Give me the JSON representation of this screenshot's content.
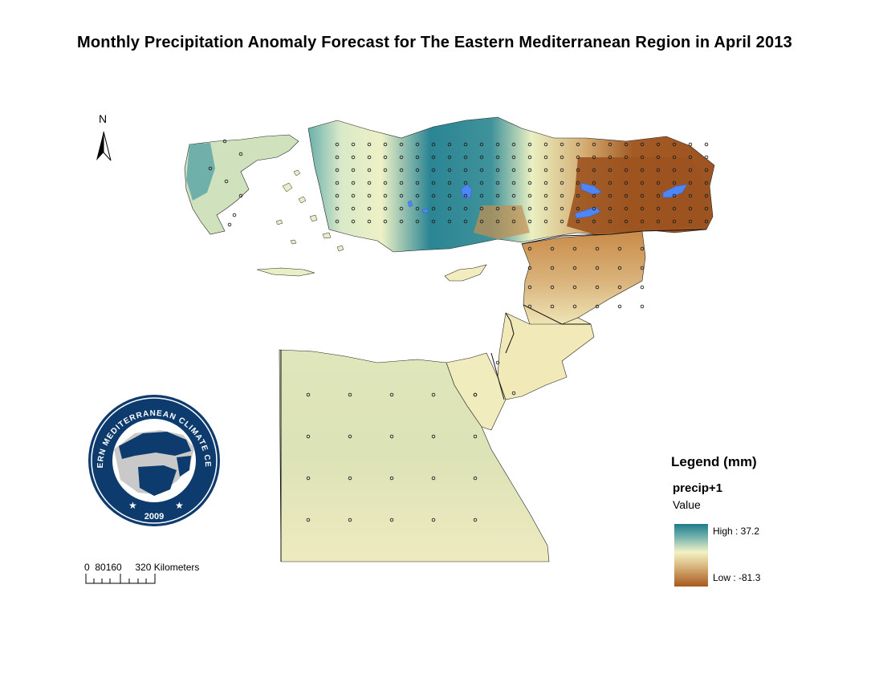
{
  "title": "Monthly Precipitation Anomaly Forecast for The Eastern Mediterranean Region in April 2013",
  "north_arrow": {
    "label": "N",
    "icon": "north-arrow-icon"
  },
  "logo": {
    "text": "EASTERN MEDITERRANEAN CLIMATE CENTRE",
    "year": "2009",
    "colors": {
      "ring": "#0d3b6e",
      "land": "#0d3b6e",
      "sea": "#ffffff",
      "other": "#c9c9c9"
    }
  },
  "scale_bar": {
    "label": "0  80160     320 Kilometers"
  },
  "legend": {
    "title": "Legend (mm)",
    "layer": "precip+1",
    "field": "Value",
    "high_label": "High : 37.2",
    "low_label": "Low : -81.3",
    "colors": {
      "high": "#1f7b8c",
      "mid": "#f3f2c4",
      "low": "#a8581f"
    }
  },
  "water_color": "#4f86f7"
}
